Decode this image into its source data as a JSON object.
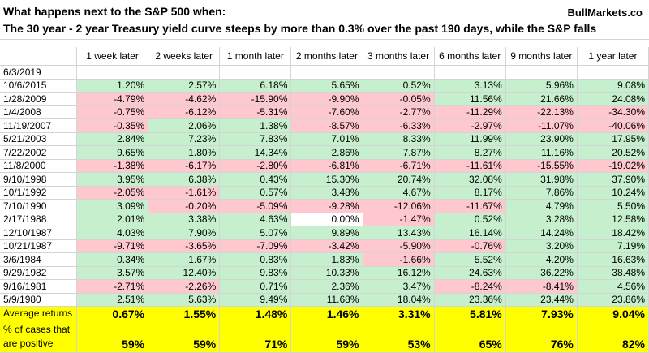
{
  "header": {
    "title": "What happens next to the S&P 500 when:",
    "source": "BullMarkets.co",
    "subtitle": "The 30 year - 2 year Treasury yield curve steeps by more than 0.3% over the past 190 days, while the S&P falls"
  },
  "table": {
    "columns": [
      "1 week later",
      "2 weeks later",
      "1 month later",
      "2 months later",
      "3 months later",
      "6 months later",
      "9 months later",
      "1 year later"
    ],
    "rows": [
      {
        "date": "6/3/2019",
        "values": []
      },
      {
        "date": "10/6/2015",
        "values": [
          "1.20%",
          "2.57%",
          "6.18%",
          "5.65%",
          "0.52%",
          "3.13%",
          "5.96%",
          "9.08%"
        ]
      },
      {
        "date": "1/28/2009",
        "values": [
          "-4.79%",
          "-4.62%",
          "-15.90%",
          "-9.90%",
          "-0.05%",
          "11.56%",
          "21.66%",
          "24.08%"
        ]
      },
      {
        "date": "1/4/2008",
        "values": [
          "-0.75%",
          "-6.12%",
          "-5.31%",
          "-7.60%",
          "-2.77%",
          "-11.29%",
          "-22.13%",
          "-34.30%"
        ]
      },
      {
        "date": "11/19/2007",
        "values": [
          "-0.35%",
          "2.06%",
          "1.38%",
          "-8.57%",
          "-6.33%",
          "-2.97%",
          "-11.07%",
          "-40.06%"
        ]
      },
      {
        "date": "5/21/2003",
        "values": [
          "2.84%",
          "7.23%",
          "7.83%",
          "7.01%",
          "8.33%",
          "11.99%",
          "23.90%",
          "17.95%"
        ]
      },
      {
        "date": "7/22/2002",
        "values": [
          "9.65%",
          "1.80%",
          "14.34%",
          "2.86%",
          "7.87%",
          "8.27%",
          "11.16%",
          "20.52%"
        ]
      },
      {
        "date": "11/8/2000",
        "values": [
          "-1.38%",
          "-6.17%",
          "-2.80%",
          "-6.81%",
          "-6.71%",
          "-11.61%",
          "-15.55%",
          "-19.02%"
        ]
      },
      {
        "date": "9/10/1998",
        "values": [
          "3.95%",
          "6.38%",
          "0.43%",
          "15.30%",
          "20.74%",
          "32.08%",
          "31.98%",
          "37.90%"
        ]
      },
      {
        "date": "10/1/1992",
        "values": [
          "-2.05%",
          "-1.61%",
          "0.57%",
          "3.48%",
          "4.67%",
          "8.17%",
          "7.86%",
          "10.24%"
        ]
      },
      {
        "date": "7/10/1990",
        "values": [
          "3.09%",
          "-0.20%",
          "-5.09%",
          "-9.28%",
          "-12.06%",
          "-11.67%",
          "4.79%",
          "5.50%"
        ]
      },
      {
        "date": "2/17/1988",
        "values": [
          "2.01%",
          "3.38%",
          "4.63%",
          "0.00%",
          "-1.47%",
          "0.52%",
          "3.28%",
          "12.58%"
        ]
      },
      {
        "date": "12/10/1987",
        "values": [
          "4.03%",
          "7.90%",
          "5.07%",
          "9.89%",
          "13.43%",
          "16.14%",
          "14.24%",
          "18.42%"
        ]
      },
      {
        "date": "10/21/1987",
        "values": [
          "-9.71%",
          "-3.65%",
          "-7.09%",
          "-3.42%",
          "-5.90%",
          "-0.76%",
          "3.20%",
          "7.19%"
        ]
      },
      {
        "date": "3/6/1984",
        "values": [
          "0.34%",
          "1.67%",
          "0.83%",
          "1.83%",
          "-1.66%",
          "5.52%",
          "4.20%",
          "16.63%"
        ]
      },
      {
        "date": "9/29/1982",
        "values": [
          "3.57%",
          "12.40%",
          "9.83%",
          "10.33%",
          "16.12%",
          "24.63%",
          "36.22%",
          "38.48%"
        ]
      },
      {
        "date": "9/16/1981",
        "values": [
          "-2.71%",
          "-2.26%",
          "0.71%",
          "2.36%",
          "3.47%",
          "-8.24%",
          "-8.41%",
          "4.56%"
        ]
      },
      {
        "date": "5/9/1980",
        "values": [
          "2.51%",
          "5.63%",
          "9.49%",
          "11.68%",
          "18.04%",
          "23.36%",
          "23.44%",
          "23.86%"
        ]
      }
    ],
    "summary": [
      {
        "label": "Average returns",
        "values": [
          "0.67%",
          "1.55%",
          "1.48%",
          "1.46%",
          "3.31%",
          "5.81%",
          "7.93%",
          "9.04%"
        ]
      },
      {
        "label": "% of cases that are positive",
        "values": [
          "59%",
          "59%",
          "71%",
          "59%",
          "53%",
          "65%",
          "76%",
          "82%"
        ]
      }
    ]
  }
}
